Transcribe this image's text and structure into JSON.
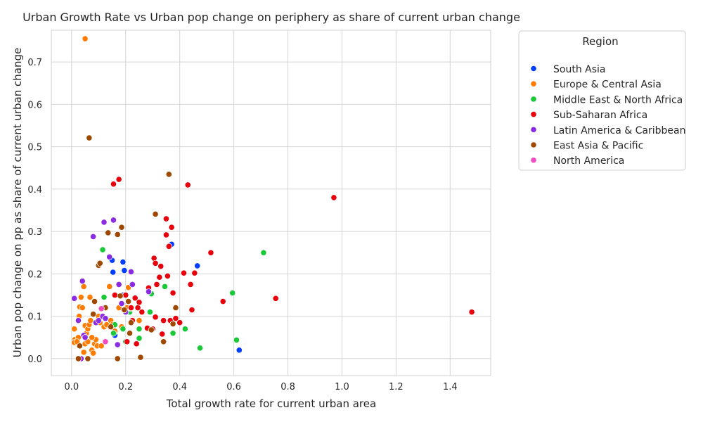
{
  "chart_data": {
    "type": "scatter",
    "title": "Urban Growth Rate vs Urban pop change on periphery as share of current urban change",
    "xlabel": "Total growth rate for current urban area",
    "ylabel": "Urban pop change on pp as share of current urban change",
    "xlim": [
      -0.075,
      1.55
    ],
    "ylim": [
      -0.04,
      0.775
    ],
    "xticks": [
      "0.0",
      "0.2",
      "0.4",
      "0.6",
      "0.8",
      "1.0",
      "1.2",
      "1.4"
    ],
    "xtick_values": [
      0,
      0.2,
      0.4,
      0.6,
      0.8,
      1.0,
      1.2,
      1.4
    ],
    "yticks": [
      "0.0",
      "0.1",
      "0.2",
      "0.3",
      "0.4",
      "0.5",
      "0.6",
      "0.7"
    ],
    "ytick_values": [
      0,
      0.1,
      0.2,
      0.3,
      0.4,
      0.5,
      0.6,
      0.7
    ],
    "grid": true,
    "legend": {
      "title": "Region",
      "placement": "outside-right"
    },
    "series": [
      {
        "name": "South Asia",
        "color": "#023eff",
        "points": [
          [
            0.19,
            0.228
          ],
          [
            0.195,
            0.208
          ],
          [
            0.15,
            0.232
          ],
          [
            0.153,
            0.204
          ],
          [
            0.19,
            0.15
          ],
          [
            0.37,
            0.27
          ],
          [
            0.465,
            0.219
          ],
          [
            0.62,
            0.02
          ],
          [
            0.16,
            0.055
          ]
        ]
      },
      {
        "name": "Europe & Central Asia",
        "color": "#ff7c00",
        "points": [
          [
            0.05,
            0.755
          ],
          [
            0.01,
            0.07
          ],
          [
            0.012,
            0.045
          ],
          [
            0.01,
            0.038
          ],
          [
            0.025,
            0.05
          ],
          [
            0.028,
            0.1
          ],
          [
            0.03,
            0.122
          ],
          [
            0.04,
            0.12
          ],
          [
            0.045,
            0.17
          ],
          [
            0.05,
            0.078
          ],
          [
            0.055,
            0.06
          ],
          [
            0.06,
            0.07
          ],
          [
            0.065,
            0.08
          ],
          [
            0.068,
            0.145
          ],
          [
            0.07,
            0.09
          ],
          [
            0.075,
            0.02
          ],
          [
            0.08,
            0.013
          ],
          [
            0.085,
            0.035
          ],
          [
            0.09,
            0.045
          ],
          [
            0.095,
            0.03
          ],
          [
            0.1,
            0.1
          ],
          [
            0.105,
            0.085
          ],
          [
            0.11,
            0.03
          ],
          [
            0.12,
            0.075
          ],
          [
            0.125,
            0.12
          ],
          [
            0.13,
            0.08
          ],
          [
            0.14,
            0.17
          ],
          [
            0.145,
            0.09
          ],
          [
            0.15,
            0.08
          ],
          [
            0.16,
            0.065
          ],
          [
            0.175,
            0.12
          ],
          [
            0.185,
            0.075
          ],
          [
            0.2,
            0.15
          ],
          [
            0.205,
            0.12
          ],
          [
            0.21,
            0.168
          ],
          [
            0.25,
            0.09
          ],
          [
            0.05,
            0.035
          ],
          [
            0.045,
            0.015
          ],
          [
            0.035,
            0.145
          ],
          [
            0.02,
            0.04
          ],
          [
            0.06,
            0.04
          ],
          [
            0.075,
            0.05
          ]
        ]
      },
      {
        "name": "Middle East & North Africa",
        "color": "#1ac938",
        "points": [
          [
            0.115,
            0.257
          ],
          [
            0.12,
            0.145
          ],
          [
            0.155,
            0.06
          ],
          [
            0.16,
            0.08
          ],
          [
            0.19,
            0.07
          ],
          [
            0.2,
            0.04
          ],
          [
            0.215,
            0.11
          ],
          [
            0.22,
            0.118
          ],
          [
            0.25,
            0.07
          ],
          [
            0.25,
            0.048
          ],
          [
            0.29,
            0.11
          ],
          [
            0.295,
            0.153
          ],
          [
            0.345,
            0.17
          ],
          [
            0.375,
            0.06
          ],
          [
            0.42,
            0.07
          ],
          [
            0.475,
            0.025
          ],
          [
            0.595,
            0.155
          ],
          [
            0.61,
            0.044
          ],
          [
            0.71,
            0.25
          ]
        ]
      },
      {
        "name": "Sub-Saharan Africa",
        "color": "#e8000b",
        "points": [
          [
            0.175,
            0.423
          ],
          [
            0.155,
            0.412
          ],
          [
            0.16,
            0.15
          ],
          [
            0.2,
            0.15
          ],
          [
            0.205,
            0.04
          ],
          [
            0.22,
            0.12
          ],
          [
            0.225,
            0.09
          ],
          [
            0.235,
            0.143
          ],
          [
            0.24,
            0.035
          ],
          [
            0.245,
            0.12
          ],
          [
            0.25,
            0.133
          ],
          [
            0.26,
            0.11
          ],
          [
            0.28,
            0.072
          ],
          [
            0.285,
            0.167
          ],
          [
            0.3,
            0.07
          ],
          [
            0.305,
            0.237
          ],
          [
            0.31,
            0.098
          ],
          [
            0.31,
            0.225
          ],
          [
            0.315,
            0.175
          ],
          [
            0.325,
            0.192
          ],
          [
            0.33,
            0.218
          ],
          [
            0.335,
            0.058
          ],
          [
            0.34,
            0.09
          ],
          [
            0.35,
            0.33
          ],
          [
            0.35,
            0.292
          ],
          [
            0.355,
            0.195
          ],
          [
            0.36,
            0.265
          ],
          [
            0.365,
            0.09
          ],
          [
            0.37,
            0.31
          ],
          [
            0.375,
            0.155
          ],
          [
            0.385,
            0.095
          ],
          [
            0.4,
            0.085
          ],
          [
            0.415,
            0.202
          ],
          [
            0.43,
            0.41
          ],
          [
            0.44,
            0.175
          ],
          [
            0.445,
            0.115
          ],
          [
            0.455,
            0.202
          ],
          [
            0.515,
            0.25
          ],
          [
            0.56,
            0.135
          ],
          [
            0.755,
            0.142
          ],
          [
            0.97,
            0.38
          ],
          [
            1.48,
            0.11
          ]
        ]
      },
      {
        "name": "Latin America & Caribbean",
        "color": "#8b2be2",
        "points": [
          [
            0.01,
            0.142
          ],
          [
            0.025,
            0.09
          ],
          [
            0.04,
            0.183
          ],
          [
            0.045,
            0.055
          ],
          [
            0.08,
            0.288
          ],
          [
            0.09,
            0.085
          ],
          [
            0.1,
            0.09
          ],
          [
            0.115,
            0.1
          ],
          [
            0.12,
            0.322
          ],
          [
            0.125,
            0.095
          ],
          [
            0.14,
            0.24
          ],
          [
            0.155,
            0.327
          ],
          [
            0.175,
            0.175
          ],
          [
            0.185,
            0.13
          ],
          [
            0.2,
            0.11
          ],
          [
            0.22,
            0.205
          ],
          [
            0.225,
            0.175
          ],
          [
            0.285,
            0.158
          ],
          [
            0.17,
            0.033
          ],
          [
            0.035,
            0.0
          ],
          [
            0.05,
            0.05
          ]
        ]
      },
      {
        "name": "East Asia & Pacific",
        "color": "#9f4800",
        "points": [
          [
            0.065,
            0.521
          ],
          [
            0.025,
            0.0
          ],
          [
            0.03,
            0.03
          ],
          [
            0.06,
            0.0
          ],
          [
            0.08,
            0.105
          ],
          [
            0.085,
            0.135
          ],
          [
            0.1,
            0.22
          ],
          [
            0.105,
            0.225
          ],
          [
            0.135,
            0.297
          ],
          [
            0.145,
            0.075
          ],
          [
            0.17,
            0.293
          ],
          [
            0.18,
            0.148
          ],
          [
            0.185,
            0.31
          ],
          [
            0.195,
            0.115
          ],
          [
            0.21,
            0.135
          ],
          [
            0.215,
            0.06
          ],
          [
            0.22,
            0.085
          ],
          [
            0.295,
            0.068
          ],
          [
            0.31,
            0.341
          ],
          [
            0.34,
            0.04
          ],
          [
            0.36,
            0.435
          ],
          [
            0.375,
            0.082
          ],
          [
            0.385,
            0.12
          ],
          [
            0.255,
            0.003
          ],
          [
            0.17,
            0.0
          ],
          [
            0.125,
            0.12
          ]
        ]
      },
      {
        "name": "North America",
        "color": "#f14cc1",
        "points": [
          [
            0.11,
            0.118
          ],
          [
            0.125,
            0.04
          ]
        ]
      }
    ]
  }
}
